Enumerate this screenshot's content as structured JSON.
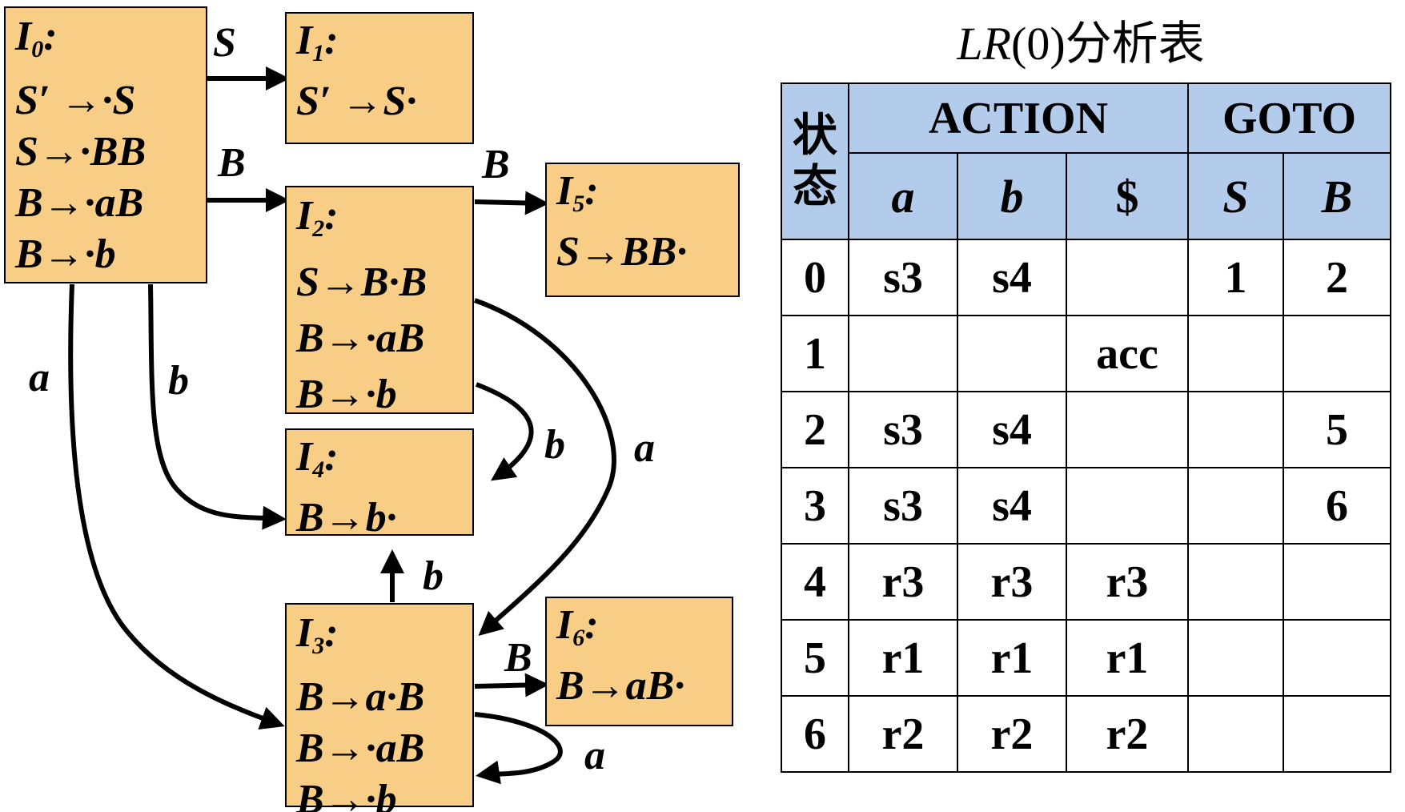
{
  "states": [
    {
      "id": "s0",
      "label": "I",
      "sub": "0",
      "items": [
        "S′ →·S",
        "S→·BB",
        "B→·aB",
        "B→·b"
      ]
    },
    {
      "id": "s1",
      "label": "I",
      "sub": "1",
      "items": [
        "S′ →S·"
      ]
    },
    {
      "id": "s2",
      "label": "I",
      "sub": "2",
      "items": [
        "S→B·B",
        "B→·aB",
        "B→·b"
      ]
    },
    {
      "id": "s5",
      "label": "I",
      "sub": "5",
      "items": [
        "S→BB·"
      ]
    },
    {
      "id": "s4",
      "label": "I",
      "sub": "4",
      "items": [
        "B→b·"
      ]
    },
    {
      "id": "s3",
      "label": "I",
      "sub": "3",
      "items": [
        "B→a·B",
        "B→·aB",
        "B→·b"
      ]
    },
    {
      "id": "s6",
      "label": "I",
      "sub": "6",
      "items": [
        "B→aB·"
      ]
    }
  ],
  "transitions": [
    {
      "from": "I0",
      "to": "I1",
      "symbol": "S"
    },
    {
      "from": "I0",
      "to": "I2",
      "symbol": "B"
    },
    {
      "from": "I2",
      "to": "I5",
      "symbol": "B"
    },
    {
      "from": "I0",
      "to": "I3",
      "symbol": "a"
    },
    {
      "from": "I0",
      "to": "I4",
      "symbol": "b"
    },
    {
      "from": "I2",
      "to": "I4",
      "symbol": "b"
    },
    {
      "from": "I2",
      "to": "I3",
      "symbol": "a"
    },
    {
      "from": "I3",
      "to": "I4",
      "symbol": "b"
    },
    {
      "from": "I3",
      "to": "I6",
      "symbol": "B"
    },
    {
      "from": "I3",
      "to": "I3",
      "symbol": "a"
    }
  ],
  "table": {
    "title_main": "LR",
    "title_rest": "(0)分析表",
    "state_header": [
      "状",
      "态"
    ],
    "action_header": "ACTION",
    "goto_header": "GOTO",
    "action_symbols": [
      "a",
      "b",
      "$"
    ],
    "goto_symbols": [
      "S",
      "B"
    ],
    "rows": [
      {
        "state": "0",
        "cells": [
          "s3",
          "s4",
          "",
          "1",
          "2"
        ]
      },
      {
        "state": "1",
        "cells": [
          "",
          "",
          "acc",
          "",
          ""
        ]
      },
      {
        "state": "2",
        "cells": [
          "s3",
          "s4",
          "",
          "",
          "5"
        ]
      },
      {
        "state": "3",
        "cells": [
          "s3",
          "s4",
          "",
          "",
          "6"
        ]
      },
      {
        "state": "4",
        "cells": [
          "r3",
          "r3",
          "r3",
          "",
          ""
        ]
      },
      {
        "state": "5",
        "cells": [
          "r1",
          "r1",
          "r1",
          "",
          ""
        ]
      },
      {
        "state": "6",
        "cells": [
          "r2",
          "r2",
          "r2",
          "",
          ""
        ]
      }
    ]
  },
  "colors": {
    "state_fill": "#F8CE86",
    "table_header_fill": "#B4CCEB",
    "line": "#000000"
  }
}
